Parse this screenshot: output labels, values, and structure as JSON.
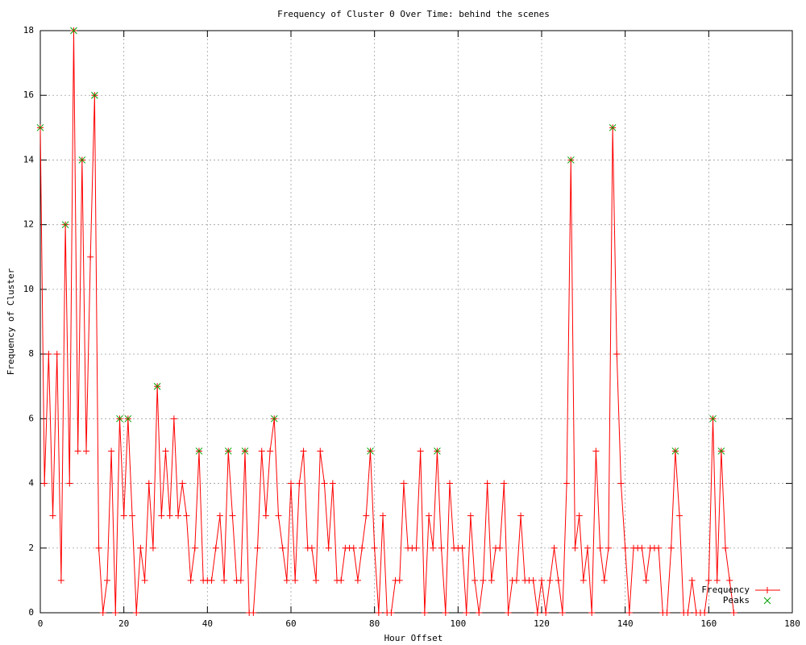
{
  "chart_data": {
    "type": "line",
    "title": "Frequency of Cluster 0 Over Time: behind the scenes",
    "x_label": "Hour Offset",
    "y_label": "Frequency of Cluster",
    "xlim": [
      0,
      180
    ],
    "xticks": [
      0,
      20,
      40,
      60,
      80,
      100,
      120,
      140,
      160,
      180
    ],
    "ylim": [
      0,
      18
    ],
    "yticks": [
      0,
      2,
      4,
      6,
      8,
      10,
      12,
      14,
      16,
      18
    ],
    "grid": true,
    "legend": "bottom-right",
    "series": [
      {
        "name": "Frequency",
        "color": "#ff0000",
        "marker": "plus",
        "x": [
          0,
          1,
          2,
          3,
          4,
          5,
          6,
          7,
          8,
          9,
          10,
          11,
          12,
          13,
          14,
          15,
          16,
          17,
          18,
          19,
          20,
          21,
          22,
          23,
          24,
          25,
          26,
          27,
          28,
          29,
          30,
          31,
          32,
          33,
          34,
          35,
          36,
          37,
          38,
          39,
          40,
          41,
          42,
          43,
          44,
          45,
          46,
          47,
          48,
          49,
          50,
          51,
          52,
          53,
          54,
          55,
          56,
          57,
          58,
          59,
          60,
          61,
          62,
          63,
          64,
          65,
          66,
          67,
          68,
          69,
          70,
          71,
          72,
          73,
          74,
          75,
          76,
          77,
          78,
          79,
          80,
          81,
          82,
          83,
          84,
          85,
          86,
          87,
          88,
          89,
          90,
          91,
          92,
          93,
          94,
          95,
          96,
          97,
          98,
          99,
          100,
          101,
          102,
          103,
          104,
          105,
          106,
          107,
          108,
          109,
          110,
          111,
          112,
          113,
          114,
          115,
          116,
          117,
          118,
          119,
          120,
          121,
          122,
          123,
          124,
          125,
          126,
          127,
          128,
          129,
          130,
          131,
          132,
          133,
          134,
          135,
          136,
          137,
          138,
          139,
          140,
          141,
          142,
          143,
          144,
          145,
          146,
          147,
          148,
          149,
          150,
          151,
          152,
          153,
          154,
          155,
          156,
          157,
          158,
          159,
          160,
          161,
          162,
          163,
          164,
          165,
          166
        ],
        "values": [
          15,
          4,
          8,
          3,
          8,
          1,
          12,
          4,
          18,
          5,
          14,
          5,
          11,
          16,
          2,
          0,
          1,
          5,
          0,
          6,
          3,
          6,
          3,
          0,
          2,
          1,
          4,
          2,
          7,
          3,
          5,
          3,
          6,
          3,
          4,
          3,
          1,
          2,
          5,
          1,
          1,
          1,
          2,
          3,
          1,
          5,
          3,
          1,
          1,
          5,
          0,
          0,
          2,
          5,
          3,
          5,
          6,
          3,
          2,
          1,
          4,
          1,
          4,
          5,
          2,
          2,
          1,
          5,
          4,
          2,
          4,
          1,
          1,
          2,
          2,
          2,
          1,
          2,
          3,
          5,
          2,
          0,
          3,
          0,
          0,
          1,
          1,
          4,
          2,
          2,
          2,
          5,
          0,
          3,
          2,
          5,
          2,
          0,
          4,
          2,
          2,
          2,
          0,
          3,
          1,
          0,
          1,
          4,
          1,
          2,
          2,
          4,
          0,
          1,
          1,
          3,
          1,
          1,
          1,
          0,
          1,
          0,
          1,
          2,
          1,
          0,
          4,
          14,
          2,
          3,
          1,
          2,
          0,
          5,
          2,
          1,
          2,
          15,
          8,
          4,
          2,
          0,
          2,
          2,
          2,
          1,
          2,
          2,
          2,
          0,
          0,
          2,
          5,
          3,
          0,
          0,
          1,
          0,
          0,
          0,
          1,
          6,
          1,
          5,
          2,
          1,
          0
        ]
      },
      {
        "name": "Peaks",
        "color": "#00a000",
        "marker": "cross",
        "x": [
          0,
          6,
          8,
          10,
          13,
          19,
          21,
          28,
          38,
          45,
          49,
          56,
          79,
          95,
          127,
          137,
          152,
          161,
          163
        ],
        "values": [
          15,
          12,
          18,
          14,
          16,
          6,
          6,
          7,
          5,
          5,
          5,
          6,
          5,
          5,
          14,
          15,
          5,
          6,
          5
        ]
      }
    ]
  }
}
